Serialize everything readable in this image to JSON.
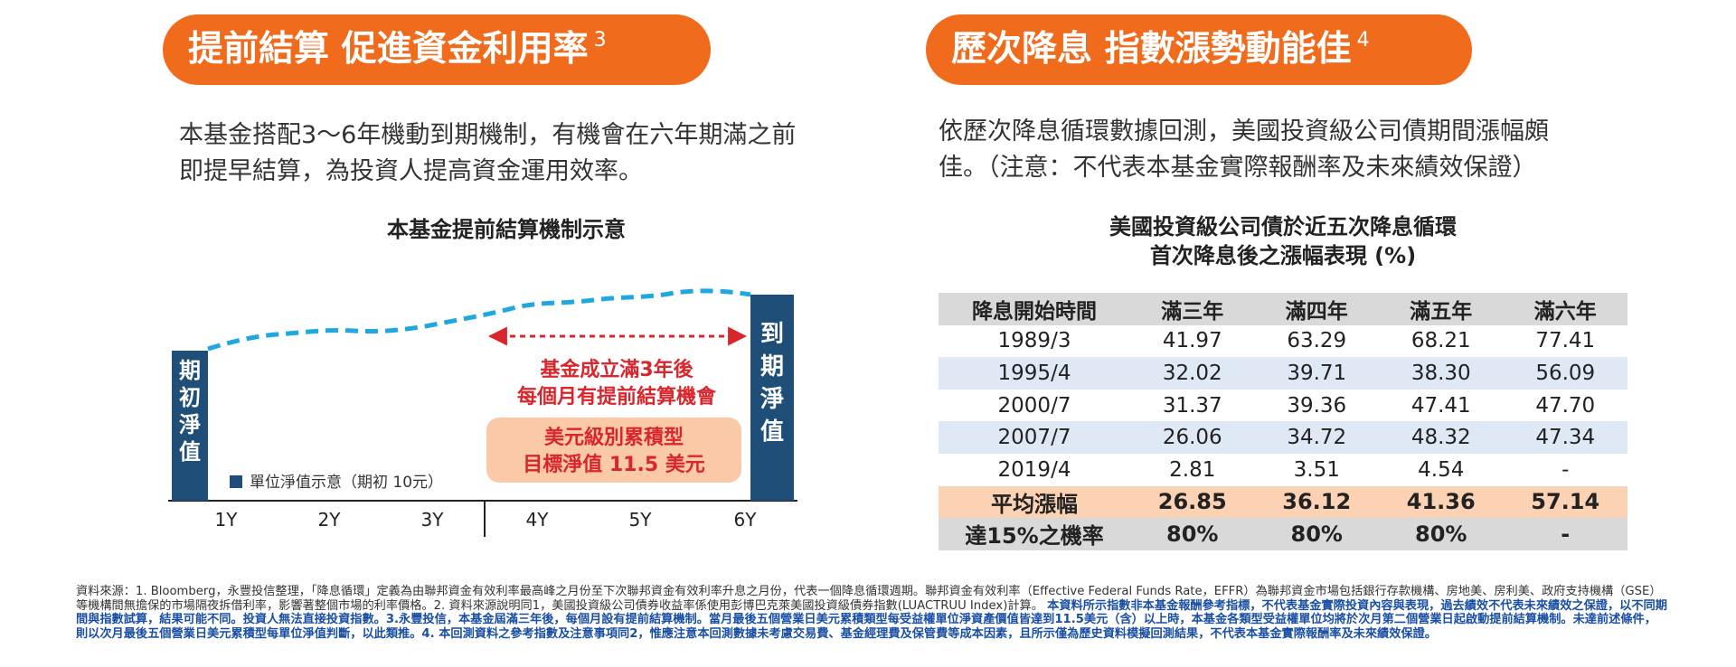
{
  "left": {
    "heading": "提前結算  促進資金利用率",
    "heading_note": "3",
    "paragraph": [
      "本基金搭配3～6年機動到期機制，有機會在六年期滿之前",
      "即提早結算，為投資人提高資金運用效率。"
    ],
    "chart_title": "本基金提前結算機制示意",
    "start_label": [
      "期",
      "初",
      "淨",
      "值"
    ],
    "end_label": [
      "到",
      "期",
      "淨",
      "值"
    ],
    "arrow_text": [
      "基金成立滿3年後",
      "每個月有提前結算機會"
    ],
    "box_text": [
      "美元級別累積型",
      "目標淨值 11.5 美元"
    ],
    "legend": "單位淨值示意（期初 10元）",
    "years": [
      "1Y",
      "2Y",
      "3Y",
      "4Y",
      "5Y",
      "6Y"
    ]
  },
  "right": {
    "heading": "歷次降息  指數漲勢動能佳",
    "heading_note": "4",
    "paragraph": [
      "依歷次降息循環數據回測，美國投資級公司債期間漲幅頗",
      "佳。（注意：不代表本基金實際報酬率及未來績效保證）"
    ],
    "table_title": [
      "美國投資級公司債於近五次降息循環",
      "首次降息後之漲幅表現 (%)"
    ],
    "headers": [
      "降息開始時間",
      "滿三年",
      "滿四年",
      "滿五年",
      "滿六年"
    ],
    "rows": [
      [
        "1989/3",
        "41.97",
        "63.29",
        "68.21",
        "77.41"
      ],
      [
        "1995/4",
        "32.02",
        "39.71",
        "38.30",
        "56.09"
      ],
      [
        "2000/7",
        "31.37",
        "39.36",
        "47.41",
        "47.70"
      ],
      [
        "2007/7",
        "26.06",
        "34.72",
        "48.32",
        "47.34"
      ],
      [
        "2019/4",
        "2.81",
        "3.51",
        "4.54",
        "-"
      ]
    ],
    "avg_row": [
      "平均漲幅",
      "26.85",
      "36.12",
      "41.36",
      "57.14"
    ],
    "prob_row": [
      "達15%之機率",
      "80%",
      "80%",
      "80%",
      "-"
    ]
  },
  "colors": {
    "orange": "#f06b1c",
    "navy": "#1f4e79",
    "dash": "#1fa8e0",
    "red": "#d9262c",
    "peach": "#f9c9a8"
  },
  "footnote": {
    "black": "資料來源：1. Bloomberg，永豐投信整理，「降息循環」定義為由聯邦資金有效利率最高峰之月份至下次聯邦資金有效利率升息之月份，代表一個降息循環週期。聯邦資金有效利率（Effective Federal Funds Rate，EFFR）為聯邦資金市場包括銀行存款機構、房地美、房利美、政府支持機構（GSE）等機構間無擔保的市場隔夜拆借利率，影響著整個市場的利率價格。2. 資料來源說明同1，美國投資級公司債券收益率係使用彭博巴克萊美國投資級債券指數(LUACTRUU Index)計算。",
    "blue": "本資料所示指數非本基金報酬參考指標，不代表基金實際投資內容與表現，過去績效不代表未來績效之保證，以不同期間與指數試算，結果可能不同。投資人無法直接投資指數。3.永豐投信，本基金屆滿三年後，每個月設有提前結算機制。當月最後五個營業日美元累積類型每受益權單位淨資產價值皆達到11.5美元（含）以上時，本基金各類型受益權單位均將於次月第二個營業日起啟動提前結算機制。未達前述條件，則以次月最後五個營業日美元累積型每單位淨值判斷，以此類推。4. 本回測資料之參考指數及注意事項同2，惟應注意本回測數據未考慮交易費、基金經理費及保管費等成本因素，且所示僅為歷史資料模擬回測結果，不代表本基金實際報酬率及未來績效保證。"
  }
}
